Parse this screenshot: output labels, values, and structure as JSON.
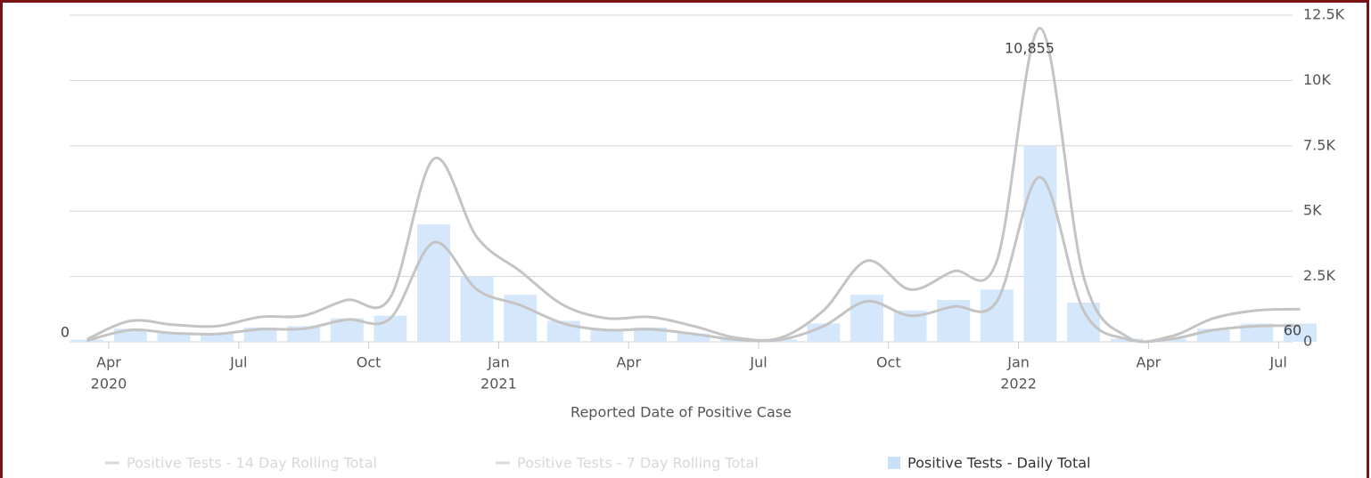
{
  "chart_data": {
    "type": "bar-line",
    "x_label": "Reported Date of Positive Case",
    "x": [
      "2020-03",
      "2020-04",
      "2020-05",
      "2020-06",
      "2020-07",
      "2020-08",
      "2020-09",
      "2020-10",
      "2020-11",
      "2020-12",
      "2021-01",
      "2021-02",
      "2021-03",
      "2021-04",
      "2021-05",
      "2021-06",
      "2021-07",
      "2021-08",
      "2021-09",
      "2021-10",
      "2021-11",
      "2021-12",
      "2022-01",
      "2022-02",
      "2022-03",
      "2022-04",
      "2022-05",
      "2022-06",
      "2022-07"
    ],
    "series": [
      {
        "name": "Positive Tests - 14 Day Rolling Total",
        "kind": "line",
        "color": "#c4c4c4",
        "values": [
          100,
          800,
          650,
          600,
          950,
          1000,
          1600,
          1700,
          7000,
          4000,
          2700,
          1400,
          900,
          950,
          600,
          150,
          150,
          1200,
          3100,
          2000,
          2700,
          3100,
          12000,
          2500,
          200,
          200,
          900,
          1200,
          1250
        ]
      },
      {
        "name": "Positive Tests - 7 Day Rolling Total",
        "kind": "line",
        "color": "#c4c4c4",
        "values": [
          50,
          450,
          330,
          300,
          480,
          500,
          850,
          900,
          3800,
          2000,
          1400,
          700,
          450,
          480,
          300,
          80,
          80,
          600,
          1550,
          1000,
          1350,
          1550,
          6300,
          1200,
          100,
          100,
          450,
          600,
          620
        ]
      },
      {
        "name": "Positive Tests - Daily Total",
        "kind": "bar",
        "color": "#d5e7fb",
        "values": [
          80,
          500,
          350,
          320,
          550,
          600,
          900,
          1000,
          4500,
          2500,
          1800,
          800,
          500,
          550,
          320,
          90,
          90,
          700,
          1800,
          1200,
          1600,
          2000,
          7500,
          1500,
          120,
          120,
          500,
          700,
          700
        ]
      }
    ],
    "annotations": [
      "10,855",
      "0",
      "60"
    ],
    "ylim": [
      0,
      12500
    ],
    "yticks": [
      0,
      {
        "value": 2500,
        "label": "2.5K"
      },
      {
        "value": 5000,
        "label": "5K"
      },
      {
        "value": 7500,
        "label": "7.5K"
      },
      {
        "value": 10000,
        "label": "10K"
      },
      {
        "value": 12500,
        "label": "12.5K"
      }
    ],
    "xticks": [
      {
        "value": "2020-04",
        "label": "Apr",
        "year": "2020"
      },
      {
        "value": "2020-07",
        "label": "Jul"
      },
      {
        "value": "2020-10",
        "label": "Oct"
      },
      {
        "value": "2021-01",
        "label": "Jan",
        "year": "2021"
      },
      {
        "value": "2021-04",
        "label": "Apr"
      },
      {
        "value": "2021-07",
        "label": "Jul"
      },
      {
        "value": "2021-10",
        "label": "Oct"
      },
      {
        "value": "2022-01",
        "label": "Jan",
        "year": "2022"
      },
      {
        "value": "2022-04",
        "label": "Apr"
      },
      {
        "value": "2022-07",
        "label": "Jul"
      }
    ],
    "grid": true
  }
}
